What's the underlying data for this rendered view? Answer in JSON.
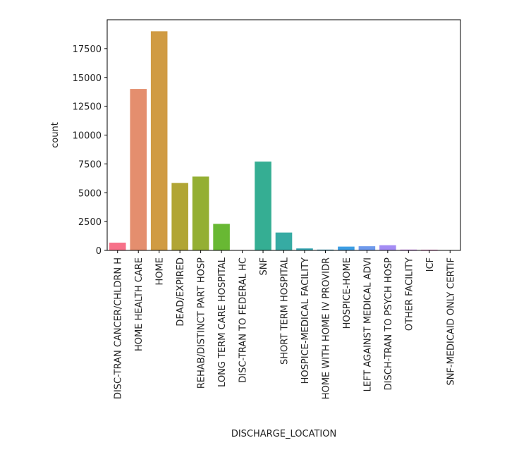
{
  "chart_data": {
    "type": "bar",
    "xlabel": "DISCHARGE_LOCATION",
    "ylabel": "count",
    "ylim": [
      0,
      20000
    ],
    "yticks": [
      0,
      2500,
      5000,
      7500,
      10000,
      12500,
      15000,
      17500
    ],
    "categories": [
      "DISC-TRAN CANCER/CHLDRN H",
      "HOME HEALTH CARE",
      "HOME",
      "DEAD/EXPIRED",
      "REHAB/DISTINCT PART HOSP",
      "LONG TERM CARE HOSPITAL",
      "DISC-TRAN TO FEDERAL HC",
      "SNF",
      "SHORT TERM HOSPITAL",
      "HOSPICE-MEDICAL FACILITY",
      "HOME WITH HOME IV PROVIDR",
      "HOSPICE-HOME",
      "LEFT AGAINST MEDICAL ADVI",
      "DISCH-TRAN TO PSYCH HOSP",
      "OTHER FACILITY",
      "ICF",
      "SNF-MEDICAID ONLY CERTIF"
    ],
    "values": [
      670,
      14000,
      19000,
      5850,
      6400,
      2300,
      10,
      7700,
      1550,
      170,
      70,
      330,
      360,
      450,
      70,
      60,
      20
    ],
    "colors": [
      "#f77189",
      "#e48e6e",
      "#d09b43",
      "#b1a534",
      "#94af33",
      "#68b833",
      "#33b57e",
      "#35ae93",
      "#36aba3",
      "#37a7b3",
      "#39a3c7",
      "#3d9ee4",
      "#6f9aec",
      "#a48cf4",
      "#cc7af4",
      "#f565cc",
      "#f668b0"
    ],
    "grid": false,
    "legend": "none"
  }
}
